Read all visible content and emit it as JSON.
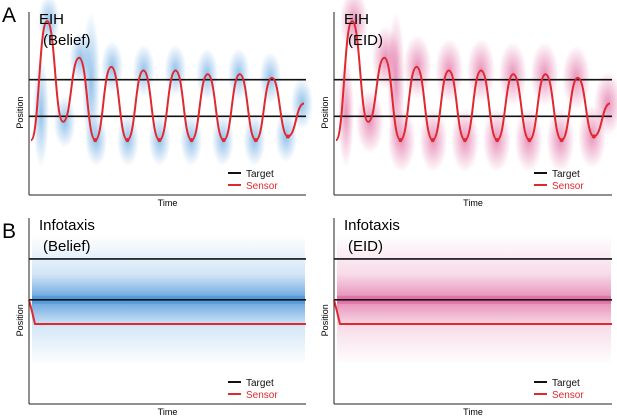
{
  "figure": {
    "panel_letters": [
      "A",
      "B"
    ],
    "colors": {
      "target": "#111111",
      "sensor": "#e0282f",
      "belief_cloud": "#3b8fd9",
      "eid_cloud": "#d63c84",
      "axis": "#222222"
    }
  },
  "chart_data": [
    {
      "type": "line",
      "title": "EIH",
      "subtitle": "(Belief)",
      "xlabel": "Time",
      "ylabel": "Position",
      "cloud": "belief",
      "pattern": "oscillating",
      "legend": {
        "placement": "bottom-right",
        "entries": [
          "Target",
          "Sensor"
        ]
      },
      "series": [
        {
          "name": "Target",
          "values": [
            0.63,
            0.43
          ]
        },
        {
          "name": "Sensor",
          "values": [
            0.3,
            0.95,
            0.4,
            0.75,
            0.3,
            0.7,
            0.3,
            0.68,
            0.3,
            0.68,
            0.3,
            0.66,
            0.3,
            0.66,
            0.3,
            0.64,
            0.32,
            0.5
          ]
        }
      ]
    },
    {
      "type": "line",
      "title": "EIH",
      "subtitle": "(EID)",
      "xlabel": "Time",
      "ylabel": "Position",
      "cloud": "eid",
      "pattern": "oscillating",
      "legend": {
        "placement": "bottom-right",
        "entries": [
          "Target",
          "Sensor"
        ]
      },
      "series": [
        {
          "name": "Target",
          "values": [
            0.63,
            0.43
          ]
        },
        {
          "name": "Sensor",
          "values": [
            0.3,
            0.95,
            0.4,
            0.75,
            0.3,
            0.7,
            0.3,
            0.68,
            0.3,
            0.68,
            0.3,
            0.66,
            0.3,
            0.66,
            0.3,
            0.64,
            0.32,
            0.5
          ]
        }
      ]
    },
    {
      "type": "line",
      "title": "Infotaxis",
      "subtitle": "(Belief)",
      "xlabel": "Time",
      "ylabel": "Position",
      "cloud": "belief",
      "pattern": "flat",
      "legend": {
        "placement": "bottom-right",
        "entries": [
          "Target",
          "Sensor"
        ]
      },
      "series": [
        {
          "name": "Target",
          "values": [
            0.78,
            0.56
          ]
        },
        {
          "name": "Sensor",
          "values": [
            0.56,
            0.5,
            0.43,
            0.43
          ]
        }
      ]
    },
    {
      "type": "line",
      "title": "Infotaxis",
      "subtitle": "(EID)",
      "xlabel": "Time",
      "ylabel": "Position",
      "cloud": "eid",
      "pattern": "flat",
      "legend": {
        "placement": "bottom-right",
        "entries": [
          "Target",
          "Sensor"
        ]
      },
      "series": [
        {
          "name": "Target",
          "values": [
            0.78,
            0.56
          ]
        },
        {
          "name": "Sensor",
          "values": [
            0.56,
            0.5,
            0.43,
            0.43
          ]
        }
      ]
    }
  ]
}
